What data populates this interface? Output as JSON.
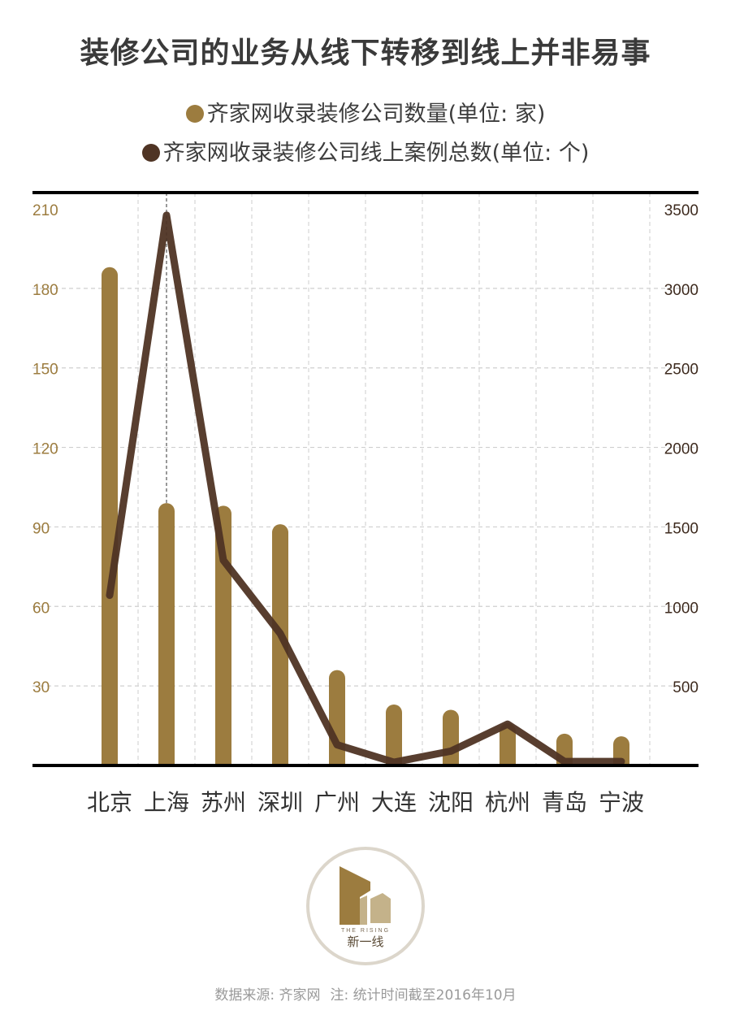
{
  "title": "装修公司的业务从线下转移到线上并非易事",
  "legend": [
    {
      "label": "齐家网收录装修公司数量(单位: 家)",
      "color": "#9c7c3f"
    },
    {
      "label": "齐家网收录装修公司线上案例总数(单位: 个)",
      "color": "#4f3424"
    }
  ],
  "chart_data": {
    "type": "bar+line",
    "categories": [
      "北京",
      "上海",
      "苏州",
      "深圳",
      "广州",
      "大连",
      "沈阳",
      "杭州",
      "青岛",
      "宁波"
    ],
    "series": [
      {
        "name": "齐家网收录装修公司数量(单位: 家)",
        "type": "bar",
        "axis": "left",
        "values": [
          188,
          99,
          98,
          91,
          36,
          23,
          21,
          16,
          12,
          11
        ]
      },
      {
        "name": "齐家网收录装修公司线上案例总数(单位: 个)",
        "type": "line",
        "axis": "right",
        "values": [
          1070,
          3460,
          1290,
          830,
          130,
          20,
          90,
          260,
          25,
          25
        ]
      }
    ],
    "left_axis": {
      "ticks": [
        "30",
        "60",
        "90",
        "120",
        "150",
        "180",
        "210"
      ],
      "range": [
        0,
        210
      ]
    },
    "right_axis": {
      "ticks": [
        "500",
        "1000",
        "1500",
        "2000",
        "2500",
        "3000",
        "3500"
      ],
      "range": [
        0,
        3500
      ]
    },
    "grid": true,
    "highlight_category": "上海"
  },
  "logo": {
    "line1": "THE RISING",
    "line2": "新一线"
  },
  "source": {
    "text": "数据来源: 齐家网",
    "note": "注: 统计时间截至2016年10月"
  }
}
